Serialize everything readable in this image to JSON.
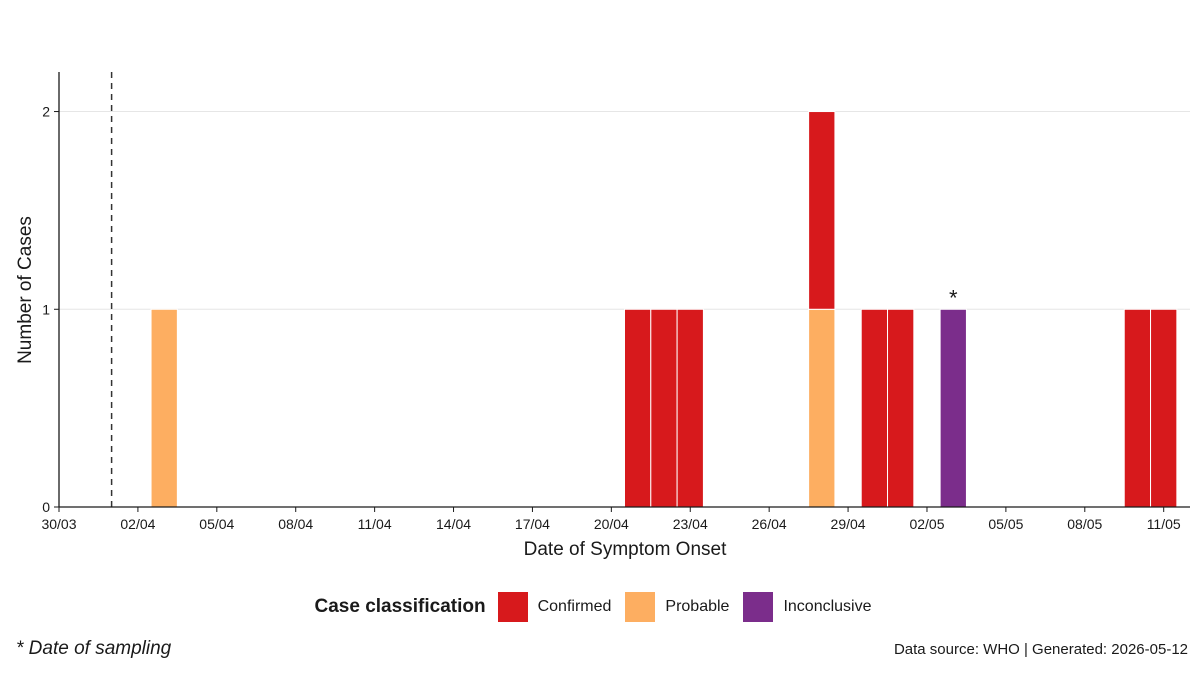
{
  "chart_data": {
    "type": "bar",
    "stacked": true,
    "xlabel": "Date of Symptom Onset",
    "ylabel": "Number of Cases",
    "ylim": [
      0,
      2.2
    ],
    "y_ticks": [
      "0",
      "1",
      "2"
    ],
    "x_range": [
      "2026-03-30",
      "2026-05-12"
    ],
    "x_tick_dates": [
      "2026-03-30",
      "2026-04-02",
      "2026-04-05",
      "2026-04-08",
      "2026-04-11",
      "2026-04-14",
      "2026-04-17",
      "2026-04-20",
      "2026-04-23",
      "2026-04-26",
      "2026-04-29",
      "2026-05-02",
      "2026-05-05",
      "2026-05-08",
      "2026-05-11"
    ],
    "x_tick_labels": [
      "30/03",
      "02/04",
      "05/04",
      "08/04",
      "11/04",
      "14/04",
      "17/04",
      "20/04",
      "23/04",
      "26/04",
      "29/04",
      "02/05",
      "05/05",
      "08/05",
      "11/05"
    ],
    "grid": "horizontal",
    "reference_line": {
      "date": "2026-04-01",
      "style": "dashed"
    },
    "series": [
      {
        "name": "Confirmed",
        "color": "#D7191C"
      },
      {
        "name": "Probable",
        "color": "#FDAE61"
      },
      {
        "name": "Inconclusive",
        "color": "#7B2D8B"
      }
    ],
    "bars": [
      {
        "date": "2026-04-03",
        "Probable": 1
      },
      {
        "date": "2026-04-21",
        "Confirmed": 1
      },
      {
        "date": "2026-04-22",
        "Confirmed": 1
      },
      {
        "date": "2026-04-23",
        "Confirmed": 1
      },
      {
        "date": "2026-04-28",
        "Probable": 1,
        "Confirmed": 1
      },
      {
        "date": "2026-04-30",
        "Confirmed": 1
      },
      {
        "date": "2026-05-01",
        "Confirmed": 1
      },
      {
        "date": "2026-05-03",
        "Inconclusive": 1,
        "annotation": "*"
      },
      {
        "date": "2026-05-10",
        "Confirmed": 1
      },
      {
        "date": "2026-05-11",
        "Confirmed": 1
      }
    ],
    "legend": {
      "title": "Case classification",
      "position": "bottom"
    }
  },
  "footnote": "* Date of sampling",
  "source_note": "Data source: WHO  |  Generated: 2026-05-12"
}
